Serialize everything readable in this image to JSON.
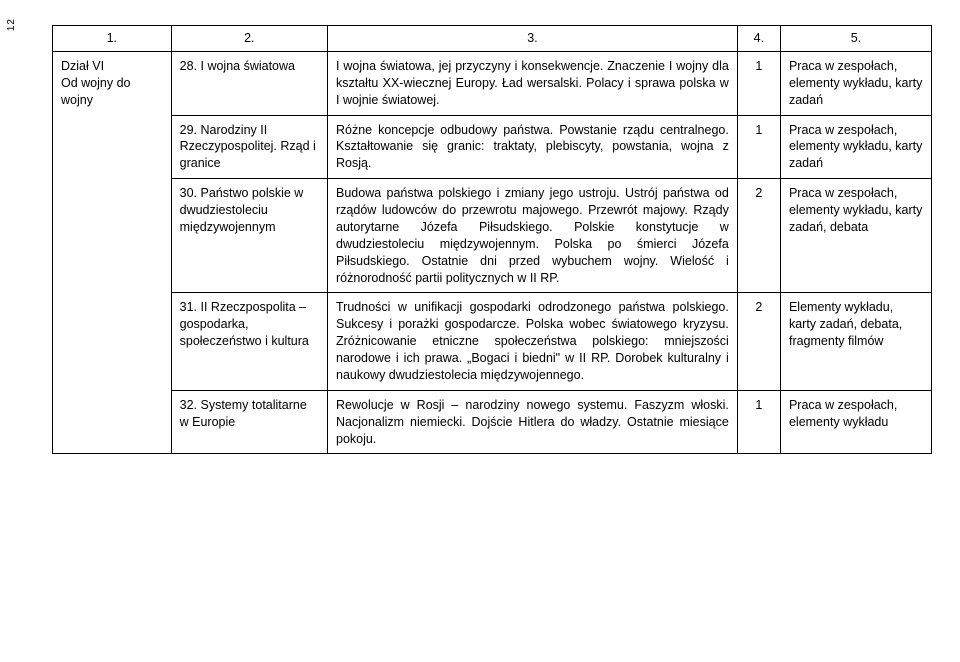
{
  "page_number": "12",
  "headers": [
    "1.",
    "2.",
    "3.",
    "4.",
    "5."
  ],
  "section": {
    "label": "Dział VI\nOd wojny do wojny"
  },
  "rows": [
    {
      "num": "28.",
      "topic": "I wojna światowa",
      "desc": "I wojna światowa, jej przyczyny i konsekwencje. Znaczenie I wojny dla kształtu XX-wiecznej Europy. Ład wersalski. Polacy i sprawa polska w I wojnie światowej.",
      "hours": "1",
      "method": "Praca w zespołach, elementy wykładu, karty zadań"
    },
    {
      "num": "29.",
      "topic": "Narodziny II Rzeczypospolitej. Rząd i granice",
      "desc": "Różne koncepcje odbudowy państwa. Powstanie rządu centralnego. Kształtowanie się granic: traktaty, plebiscyty, powstania, wojna z Rosją.",
      "hours": "1",
      "method": "Praca w zespołach, elementy wykładu, karty zadań"
    },
    {
      "num": "30.",
      "topic": "Państwo polskie w dwudziestoleciu międzywojennym",
      "desc": "Budowa państwa polskiego i zmiany jego ustroju. Ustrój państwa od rządów ludowców do przewrotu majowego. Przewrót majowy. Rządy autorytarne Józefa Piłsudskiego. Polskie konstytucje w dwudziestoleciu międzywojennym. Polska po śmierci Józefa Piłsudskiego. Ostatnie dni przed wybuchem wojny. Wielość i różnorodność partii politycznych w II RP.",
      "hours": "2",
      "method": "Praca w zespołach, elementy wykładu, karty zadań, debata"
    },
    {
      "num": "31.",
      "topic": "II Rzeczpospolita – gospodarka, społeczeństwo i kultura",
      "desc": "Trudności w unifikacji gospodarki odrodzonego państwa polskiego. Sukcesy i porażki gospodarcze. Polska wobec światowego kryzysu. Zróżnicowanie etniczne społeczeństwa polskiego: mniejszości narodowe i ich prawa. „Bogaci i biedni\" w II RP. Dorobek kulturalny i naukowy dwudziestolecia międzywojennego.",
      "hours": "2",
      "method": "Elementy wykładu, karty zadań, debata, fragmenty filmów"
    },
    {
      "num": "32.",
      "topic": "Systemy totalitarne w Europie",
      "desc": "Rewolucje w Rosji – narodziny nowego systemu. Faszyzm włoski. Nacjonalizm niemiecki. Dojście Hitlera do władzy. Ostatnie miesiące pokoju.",
      "hours": "1",
      "method": "Praca w zespołach, elementy wykładu"
    }
  ]
}
